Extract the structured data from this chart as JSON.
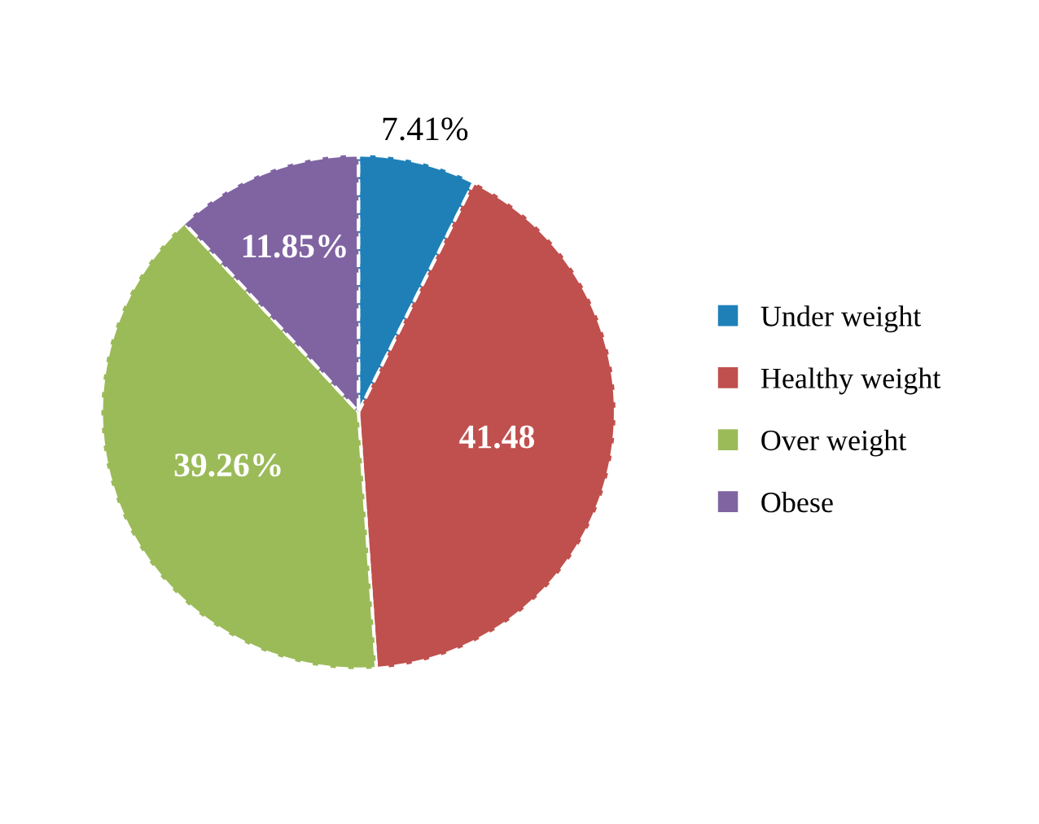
{
  "chart_data": {
    "type": "pie",
    "categories": [
      "Under weight",
      "Healthy weight",
      "Over weight",
      "Obese"
    ],
    "values": [
      7.41,
      41.48,
      39.26,
      11.85
    ],
    "value_labels": [
      "7.41%",
      "41.48",
      "39.26%",
      "11.85%"
    ],
    "colors": [
      "#1f80b8",
      "#c0504d",
      "#9bbb59",
      "#8064a2"
    ],
    "legend": "right"
  }
}
